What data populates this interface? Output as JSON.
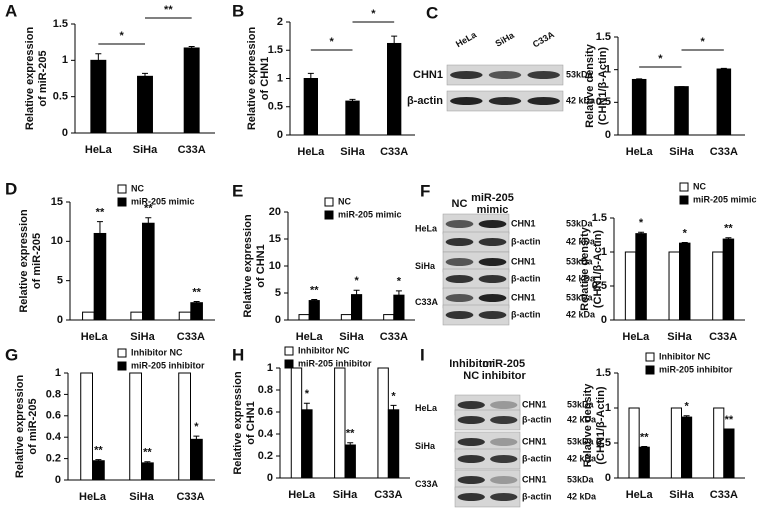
{
  "chart_data": [
    {
      "panel": "A",
      "type": "bar",
      "y_label": [
        "Relative expression",
        "of miR-205"
      ],
      "categories": [
        "HeLa",
        "SiHa",
        "C33A"
      ],
      "series": [
        {
          "color": "#000000",
          "values": [
            1.0,
            0.78,
            1.17
          ],
          "errors": [
            0.09,
            0.04,
            0.02
          ]
        }
      ],
      "ylim": [
        0,
        1.5
      ],
      "yticks": [
        0,
        0.5,
        1,
        1.5
      ],
      "significance": [
        {
          "text": "*",
          "between": [
            0,
            1
          ]
        },
        {
          "text": "**",
          "between": [
            1,
            2
          ]
        }
      ]
    },
    {
      "panel": "B",
      "type": "bar",
      "y_label": [
        "Relative expression",
        "of CHN1"
      ],
      "categories": [
        "HeLa",
        "SiHa",
        "C33A"
      ],
      "series": [
        {
          "color": "#000000",
          "values": [
            1.0,
            0.6,
            1.62
          ],
          "errors": [
            0.09,
            0.03,
            0.13
          ]
        }
      ],
      "ylim": [
        0,
        2
      ],
      "yticks": [
        0,
        0.5,
        1,
        1.5,
        2
      ],
      "significance": [
        {
          "text": "*",
          "between": [
            0,
            1
          ]
        },
        {
          "text": "*",
          "between": [
            1,
            2
          ]
        }
      ]
    },
    {
      "panel": "C",
      "type": "bar",
      "y_label": [
        "Relative density",
        "(CHN1/β-Actin)"
      ],
      "categories": [
        "HeLa",
        "SiHa",
        "C33A"
      ],
      "series": [
        {
          "color": "#000000",
          "values": [
            0.85,
            0.74,
            1.01
          ],
          "errors": [
            0.01,
            0,
            0.01
          ]
        }
      ],
      "ylim": [
        0,
        1.5
      ],
      "yticks": [
        0,
        0.5,
        1,
        1.5
      ],
      "significance": [
        {
          "text": "*",
          "between": [
            0,
            1
          ]
        },
        {
          "text": "*",
          "between": [
            1,
            2
          ]
        }
      ]
    },
    {
      "panel": "D",
      "type": "bar",
      "y_label": [
        "Relative expression",
        "of miR-205"
      ],
      "categories": [
        "HeLa",
        "SiHa",
        "C33A"
      ],
      "series": [
        {
          "name": "NC",
          "color": "#ffffff",
          "values": [
            1,
            1,
            1
          ]
        },
        {
          "name": "miR-205 mimic",
          "color": "#000000",
          "values": [
            11,
            12.3,
            2.2
          ],
          "errors": [
            1.5,
            0.7,
            0.15
          ],
          "stars": [
            "**",
            "**",
            "**"
          ]
        }
      ],
      "ylim": [
        0,
        15
      ],
      "yticks": [
        0,
        5,
        10,
        15
      ]
    },
    {
      "panel": "E",
      "type": "bar",
      "y_label": [
        "Relative expression",
        "of CHN1"
      ],
      "categories": [
        "HeLa",
        "SiHa",
        "C33A"
      ],
      "series": [
        {
          "name": "NC",
          "color": "#ffffff",
          "values": [
            1,
            1,
            1
          ]
        },
        {
          "name": "miR-205 mimic",
          "color": "#000000",
          "values": [
            3.6,
            4.7,
            4.6
          ],
          "errors": [
            0.2,
            0.8,
            0.8
          ],
          "stars": [
            "**",
            "*",
            "*"
          ]
        }
      ],
      "ylim": [
        0,
        20
      ],
      "yticks": [
        0,
        5,
        10,
        15,
        20
      ]
    },
    {
      "panel": "F",
      "type": "bar",
      "y_label": [
        "Relative density",
        "(CHN1/β-Actin)"
      ],
      "categories": [
        "HeLa",
        "SiHa",
        "C33A"
      ],
      "series": [
        {
          "name": "NC",
          "color": "#ffffff",
          "values": [
            1,
            1,
            1
          ]
        },
        {
          "name": "miR-205 mimic",
          "color": "#000000",
          "values": [
            1.27,
            1.13,
            1.19
          ],
          "errors": [
            0.02,
            0.01,
            0.02
          ],
          "stars": [
            "*",
            "*",
            "**"
          ]
        }
      ],
      "ylim": [
        0,
        1.5
      ],
      "yticks": [
        0,
        0.5,
        1,
        1.5
      ]
    },
    {
      "panel": "G",
      "type": "bar",
      "y_label": [
        "Relative expression",
        "of miR-205"
      ],
      "categories": [
        "HeLa",
        "SiHa",
        "C33A"
      ],
      "series": [
        {
          "name": "Inhibitor  NC",
          "color": "#ffffff",
          "values": [
            1,
            1,
            1
          ]
        },
        {
          "name": "miR-205 inhibitor",
          "color": "#000000",
          "values": [
            0.18,
            0.16,
            0.38
          ],
          "errors": [
            0.01,
            0.01,
            0.03
          ],
          "stars": [
            "**",
            "**",
            "*"
          ]
        }
      ],
      "ylim": [
        0,
        1
      ],
      "yticks": [
        0,
        0.2,
        0.4,
        0.6,
        0.8,
        1
      ]
    },
    {
      "panel": "H",
      "type": "bar",
      "y_label": [
        "Relative expression",
        "of CHN1"
      ],
      "categories": [
        "HeLa",
        "SiHa",
        "C33A"
      ],
      "series": [
        {
          "name": "Inhibitor  NC",
          "color": "#ffffff",
          "values": [
            1,
            1,
            1
          ]
        },
        {
          "name": "miR-205 inhibitor",
          "color": "#000000",
          "values": [
            0.62,
            0.3,
            0.62
          ],
          "errors": [
            0.06,
            0.02,
            0.04
          ],
          "stars": [
            "*",
            "**",
            "*"
          ]
        }
      ],
      "ylim": [
        0,
        1
      ],
      "yticks": [
        0,
        0.2,
        0.4,
        0.6,
        0.8,
        1
      ]
    },
    {
      "panel": "I",
      "type": "bar",
      "y_label": [
        "Relative density",
        "(CHN1/β-Actin)"
      ],
      "categories": [
        "HeLa",
        "SiHa",
        "C33A"
      ],
      "series": [
        {
          "name": "Inhibitor  NC",
          "color": "#ffffff",
          "values": [
            1,
            1,
            1
          ]
        },
        {
          "name": "miR-205 inhibitor",
          "color": "#000000",
          "values": [
            0.44,
            0.87,
            0.7
          ],
          "errors": [
            0.01,
            0.02,
            0
          ],
          "stars": [
            "**",
            "*",
            "**"
          ]
        }
      ],
      "ylim": [
        0,
        1.5
      ],
      "yticks": [
        0,
        0.5,
        1,
        1.5
      ]
    }
  ],
  "blots": [
    {
      "columns": [
        [
          "HeLa"
        ],
        [
          "SiHa"
        ],
        [
          "C33A"
        ]
      ],
      "groups": [
        {
          "rows": [
            {
              "protein": "CHN1",
              "size": "53kDa"
            },
            {
              "protein": "β-actin",
              "size": "42 kDa"
            }
          ]
        }
      ]
    },
    {
      "columns": [
        [
          "NC"
        ],
        [
          "miR-205",
          "mimic"
        ]
      ],
      "groups": [
        {
          "name": "HeLa",
          "rows": [
            {
              "protein": "CHN1",
              "size": "53kDa"
            },
            {
              "protein": "β-actin",
              "size": "42 kDa"
            }
          ]
        },
        {
          "name": "SiHa",
          "rows": [
            {
              "protein": "CHN1",
              "size": "53kDa"
            },
            {
              "protein": "β-actin",
              "size": "42 kDa"
            }
          ]
        },
        {
          "name": "C33A",
          "rows": [
            {
              "protein": "CHN1",
              "size": "53kDa"
            },
            {
              "protein": "β-actin",
              "size": "42 kDa"
            }
          ]
        }
      ]
    },
    {
      "columns": [
        [
          "Inhibitor",
          "NC"
        ],
        [
          "miR-205",
          "inhibitor"
        ]
      ],
      "groups": [
        {
          "name": "HeLa",
          "rows": [
            {
              "protein": "CHN1",
              "size": "53kDa"
            },
            {
              "protein": "β-actin",
              "size": "42 kDa"
            }
          ]
        },
        {
          "name": "SiHa",
          "rows": [
            {
              "protein": "CHN1",
              "size": "53kDa"
            },
            {
              "protein": "β-actin",
              "size": "42 kDa"
            }
          ]
        },
        {
          "name": "C33A",
          "rows": [
            {
              "protein": "CHN1",
              "size": "53kDa"
            },
            {
              "protein": "β-actin",
              "size": "42 kDa"
            }
          ]
        }
      ]
    }
  ]
}
